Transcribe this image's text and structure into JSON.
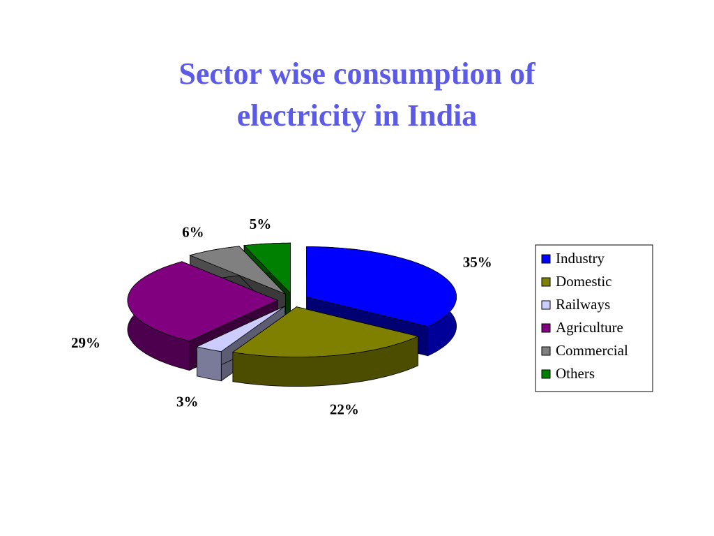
{
  "chart_data": {
    "type": "pie3d",
    "title": "Sector wise consumption of electricity in India",
    "categories": [
      "Industry",
      "Domestic",
      "Railways",
      "Agriculture",
      "Commercial",
      "Others"
    ],
    "values": [
      35,
      22,
      3,
      29,
      6,
      5
    ],
    "value_labels": [
      "35%",
      "22%",
      "3%",
      "29%",
      "6%",
      "5%"
    ],
    "colors": [
      "#0000ff",
      "#808000",
      "#ccccff",
      "#800080",
      "#808080",
      "#008000"
    ],
    "legend": "right"
  }
}
